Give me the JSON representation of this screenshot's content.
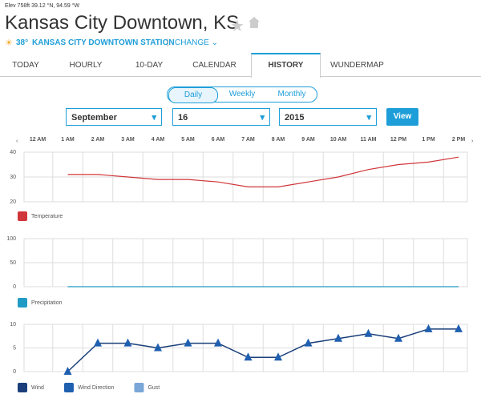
{
  "header": {
    "elevation": "Elev 758ft 39.12 °N, 94.59 °W",
    "title": "Kansas City Downtown, KS",
    "temperature": "38°",
    "station": "KANSAS CITY DOWNTOWN STATION",
    "change": "CHANGE"
  },
  "tabs": [
    "TODAY",
    "HOURLY",
    "10-DAY",
    "CALENDAR",
    "HISTORY",
    "WUNDERMAP"
  ],
  "active_tab": 4,
  "period_toggle": {
    "options": [
      "Daily",
      "Weekly",
      "Monthly"
    ],
    "active": 0
  },
  "controls": {
    "month": "September",
    "day": "16",
    "year": "2015",
    "button": "View"
  },
  "chart_data": [
    {
      "type": "line",
      "categories": [
        "12 AM",
        "1 AM",
        "2 AM",
        "3 AM",
        "4 AM",
        "5 AM",
        "6 AM",
        "7 AM",
        "8 AM",
        "9 AM",
        "10 AM",
        "11 AM",
        "12 PM",
        "1 PM",
        "2 PM"
      ],
      "series": [
        {
          "name": "Temperature",
          "color": "#d0363a",
          "values": [
            null,
            31,
            31,
            30,
            29,
            29,
            28,
            26,
            26,
            28,
            30,
            33,
            35,
            36,
            38
          ]
        }
      ],
      "ylim": [
        20,
        40
      ],
      "yticks": [
        20,
        30,
        40
      ],
      "grid": true
    },
    {
      "type": "line",
      "series": [
        {
          "name": "Precipitation",
          "color": "#1f9bc4",
          "values": [
            null,
            0,
            0,
            0,
            0,
            0,
            0,
            0,
            0,
            0,
            0,
            0,
            0,
            0,
            0
          ]
        }
      ],
      "ylim": [
        0,
        100
      ],
      "yticks": [
        0,
        50,
        100
      ],
      "grid": true
    },
    {
      "type": "line",
      "series": [
        {
          "name": "Wind",
          "color": "#1a3f7a",
          "values": [
            null,
            0,
            6,
            6,
            5,
            6,
            6,
            3,
            3,
            6,
            7,
            8,
            7,
            9,
            9
          ]
        },
        {
          "name": "Wind Direction",
          "color": "#1f5fb0"
        },
        {
          "name": "Gust",
          "color": "#7aa6d8"
        }
      ],
      "ylim": [
        0,
        10
      ],
      "yticks": [
        0,
        5,
        10
      ],
      "grid": true
    }
  ]
}
